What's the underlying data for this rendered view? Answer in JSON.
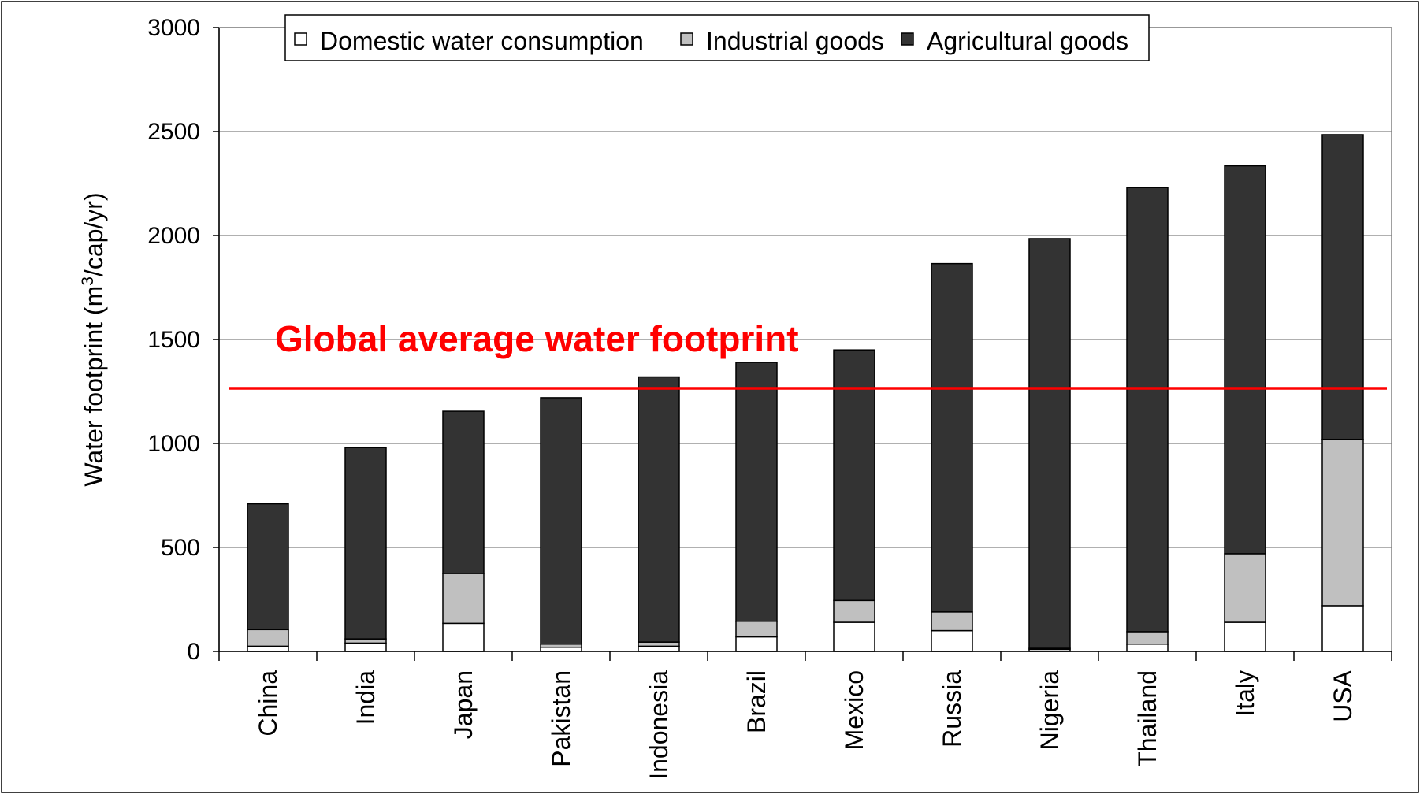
{
  "chart_data": {
    "type": "bar",
    "stacked": true,
    "title": "",
    "xlabel": "",
    "ylabel_prefix": "Water footprint (m",
    "ylabel_sup": "3",
    "ylabel_suffix": "/cap/yr)",
    "ylim": [
      0,
      3000
    ],
    "yticks": [
      "0",
      "500",
      "1000",
      "1500",
      "2000",
      "2500",
      "3000"
    ],
    "grid": true,
    "legend_position": "top",
    "categories": [
      "China",
      "India",
      "Japan",
      "Pakistan",
      "Indonesia",
      "Brazil",
      "Mexico",
      "Russia",
      "Nigeria",
      "Thailand",
      "Italy",
      "USA"
    ],
    "series": [
      {
        "name": "Domestic water consumption",
        "color": "#ffffff",
        "values": [
          25,
          40,
          135,
          20,
          25,
          70,
          140,
          100,
          10,
          35,
          140,
          220
        ]
      },
      {
        "name": "Industrial goods",
        "color": "#c0c0c0",
        "values": [
          80,
          20,
          240,
          15,
          20,
          75,
          105,
          90,
          5,
          60,
          330,
          800
        ]
      },
      {
        "name": "Agricultural goods",
        "color": "#333333",
        "values": [
          605,
          920,
          780,
          1185,
          1275,
          1245,
          1205,
          1675,
          1970,
          2135,
          1865,
          1465
        ]
      }
    ],
    "reference_line": {
      "label": "Global average water footprint",
      "value": 1265,
      "color": "#ff0000"
    }
  }
}
